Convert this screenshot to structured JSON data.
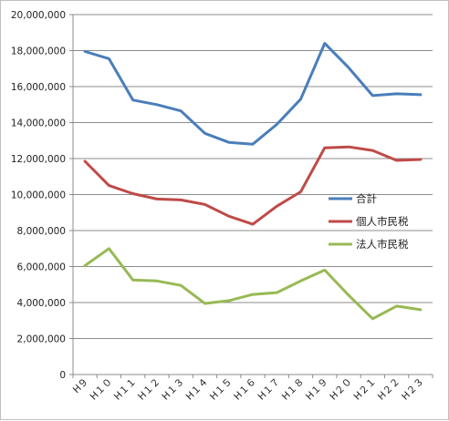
{
  "chart_data": {
    "type": "line",
    "title": "",
    "xlabel": "",
    "ylabel": "",
    "categories": [
      "H9",
      "H10",
      "H11",
      "H12",
      "H13",
      "H14",
      "H15",
      "H16",
      "H17",
      "H18",
      "H19",
      "H20",
      "H21",
      "H22",
      "H23"
    ],
    "x_tick_labels": [
      "H９",
      "H１０",
      "H１１",
      "H１２",
      "H１３",
      "H１４",
      "H１５",
      "H１６",
      "H１７",
      "H１８",
      "H１９",
      "H２０",
      "H２１",
      "H２２",
      "H２３"
    ],
    "ylim": [
      0,
      20000000
    ],
    "y_ticks": [
      0,
      2000000,
      4000000,
      6000000,
      8000000,
      10000000,
      12000000,
      14000000,
      16000000,
      18000000,
      20000000
    ],
    "y_tick_labels": [
      "0",
      "2,000,000",
      "4,000,000",
      "6,000,000",
      "8,000,000",
      "10,000,000",
      "12,000,000",
      "14,000,000",
      "16,000,000",
      "18,000,000",
      "20,000,000"
    ],
    "grid": true,
    "legend_position": "right",
    "series": [
      {
        "name": "合計",
        "color": "#4a7ebb",
        "values": [
          17950000,
          17550000,
          15250000,
          15000000,
          14650000,
          13400000,
          12900000,
          12800000,
          13900000,
          15300000,
          18400000,
          17050000,
          15500000,
          15600000,
          15550000
        ]
      },
      {
        "name": "個人市民税",
        "color": "#be4b48",
        "values": [
          11850000,
          10500000,
          10050000,
          9750000,
          9700000,
          9450000,
          8800000,
          8350000,
          9350000,
          10150000,
          12600000,
          12650000,
          12450000,
          11900000,
          11950000
        ]
      },
      {
        "name": "法人市民税",
        "color": "#98b954",
        "values": [
          6050000,
          7000000,
          5250000,
          5200000,
          4950000,
          3950000,
          4100000,
          4450000,
          4550000,
          5200000,
          5800000,
          4400000,
          3100000,
          3800000,
          3600000
        ]
      }
    ]
  }
}
